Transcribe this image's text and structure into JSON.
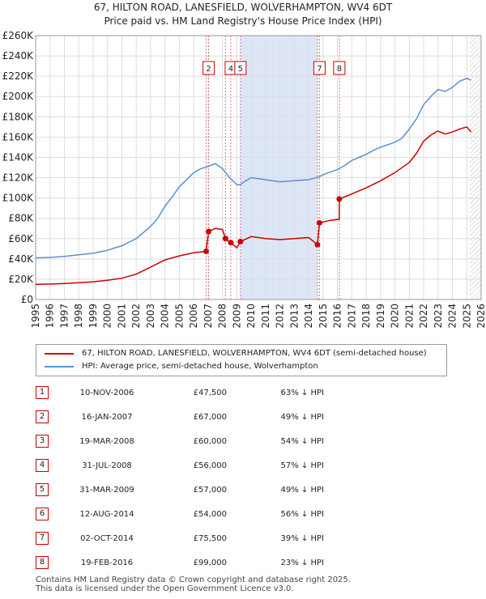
{
  "title": "67, HILTON ROAD, LANESFIELD, WOLVERHAMPTON, WV4 6DT",
  "subtitle": "Price paid vs. HM Land Registry's House Price Index (HPI)",
  "legend": {
    "red": "67, HILTON ROAD, LANESFIELD, WOLVERHAMPTON, WV4 6DT (semi-detached house)",
    "blue": "HPI: Average price, semi-detached house, Wolverhampton"
  },
  "colors": {
    "red": "#cc0000",
    "blue": "#5b8fcf",
    "shade": "#dde6f7",
    "grid": "#dddddd"
  },
  "sales": [
    {
      "n": "1",
      "date": "10-NOV-2006",
      "price": "£47,500",
      "hpi": "63% ↓ HPI"
    },
    {
      "n": "2",
      "date": "16-JAN-2007",
      "price": "£67,000",
      "hpi": "49% ↓ HPI"
    },
    {
      "n": "3",
      "date": "19-MAR-2008",
      "price": "£60,000",
      "hpi": "54% ↓ HPI"
    },
    {
      "n": "4",
      "date": "31-JUL-2008",
      "price": "£56,000",
      "hpi": "57% ↓ HPI"
    },
    {
      "n": "5",
      "date": "31-MAR-2009",
      "price": "£57,000",
      "hpi": "49% ↓ HPI"
    },
    {
      "n": "6",
      "date": "12-AUG-2014",
      "price": "£54,000",
      "hpi": "56% ↓ HPI"
    },
    {
      "n": "7",
      "date": "02-OCT-2014",
      "price": "£75,500",
      "hpi": "39% ↓ HPI"
    },
    {
      "n": "8",
      "date": "19-FEB-2016",
      "price": "£99,000",
      "hpi": "23% ↓ HPI"
    }
  ],
  "footer": {
    "line1": "Contains HM Land Registry data © Crown copyright and database right 2025.",
    "line2": "This data is licensed under the Open Government Licence v3.0."
  },
  "chart_data": {
    "type": "line",
    "xlim": [
      1995,
      2026
    ],
    "ylim": [
      0,
      260000
    ],
    "yticks": [
      0,
      20000,
      40000,
      60000,
      80000,
      100000,
      120000,
      140000,
      160000,
      180000,
      200000,
      220000,
      240000,
      260000
    ],
    "ytick_labels": [
      "£0",
      "£20K",
      "£40K",
      "£60K",
      "£80K",
      "£100K",
      "£120K",
      "£140K",
      "£160K",
      "£180K",
      "£200K",
      "£220K",
      "£240K",
      "£260K"
    ],
    "xticks": [
      "1995",
      "1996",
      "1997",
      "1998",
      "1999",
      "2000",
      "2001",
      "2002",
      "2003",
      "2004",
      "2005",
      "2006",
      "2007",
      "2008",
      "2009",
      "2010",
      "2011",
      "2012",
      "2013",
      "2014",
      "2015",
      "2016",
      "2017",
      "2018",
      "2019",
      "2020",
      "2021",
      "2022",
      "2023",
      "2024",
      "2025",
      "2026"
    ],
    "shaded_range": [
      2009.25,
      2014.6
    ],
    "future_hatch_from": 2025.2,
    "sale_markers": [
      {
        "label": "1",
        "x": 2006.86,
        "y": 47500,
        "show_box": false
      },
      {
        "label": "2",
        "x": 2007.04,
        "y": 67000,
        "show_box": true
      },
      {
        "label": "3",
        "x": 2008.21,
        "y": 60000,
        "show_box": false
      },
      {
        "label": "4",
        "x": 2008.58,
        "y": 56000,
        "show_box": true
      },
      {
        "label": "5",
        "x": 2009.25,
        "y": 57000,
        "show_box": true
      },
      {
        "label": "6",
        "x": 2014.61,
        "y": 54000,
        "show_box": false
      },
      {
        "label": "7",
        "x": 2014.75,
        "y": 75500,
        "show_box": true
      },
      {
        "label": "8",
        "x": 2016.13,
        "y": 99000,
        "show_box": true
      }
    ],
    "series": [
      {
        "name": "HPI: Average price, semi-detached house, Wolverhampton",
        "color": "#5b8fcf",
        "x": [
          1995,
          1996,
          1997,
          1998,
          1999,
          2000,
          2001,
          2002,
          2003,
          2003.5,
          2004,
          2004.5,
          2005,
          2006,
          2006.5,
          2007,
          2007.5,
          2008,
          2008.5,
          2009,
          2009.25,
          2009.5,
          2010,
          2011,
          2012,
          2013,
          2014,
          2014.75,
          2015,
          2016,
          2016.5,
          2017,
          2018,
          2018.5,
          2019,
          2020,
          2020.5,
          2021,
          2021.5,
          2022,
          2022.5,
          2023,
          2023.5,
          2024,
          2024.5,
          2025,
          2025.3
        ],
        "y": [
          41000,
          41500,
          42500,
          44000,
          45500,
          48500,
          53000,
          60000,
          72000,
          80000,
          92000,
          101000,
          111000,
          125000,
          129000,
          131000,
          134000,
          129000,
          120000,
          113000,
          113000,
          116000,
          120000,
          118000,
          116000,
          117000,
          118000,
          121000,
          123000,
          128000,
          132000,
          137000,
          143000,
          147000,
          150000,
          155000,
          159000,
          168000,
          178000,
          192000,
          200000,
          207000,
          205000,
          209000,
          215000,
          218000,
          216000
        ]
      },
      {
        "name": "67, HILTON ROAD, LANESFIELD, WOLVERHAMPTON, WV4 6DT (semi-detached house)",
        "color": "#cc0000",
        "x": [
          1995,
          1996,
          1997,
          1998,
          1999,
          2000,
          2001,
          2002,
          2003,
          2004,
          2005,
          2006,
          2006.86,
          2006.86,
          2007.04,
          2007.04,
          2007.5,
          2008.0,
          2008.21,
          2008.21,
          2008.58,
          2008.58,
          2009.0,
          2009.25,
          2009.25,
          2010,
          2011,
          2012,
          2013,
          2014,
          2014.61,
          2014.61,
          2014.75,
          2014.75,
          2015.5,
          2016.13,
          2016.13,
          2017,
          2018,
          2019,
          2020,
          2021,
          2021.5,
          2022,
          2022.5,
          2023,
          2023.5,
          2024,
          2024.5,
          2025,
          2025.3
        ],
        "y": [
          15000,
          15200,
          15800,
          16500,
          17500,
          19000,
          21000,
          25000,
          32000,
          39000,
          43000,
          46000,
          47500,
          47500,
          67000,
          67000,
          70000,
          69000,
          60000,
          60000,
          56000,
          56000,
          51000,
          57000,
          57000,
          62000,
          60000,
          59000,
          60000,
          61000,
          54000,
          54000,
          75500,
          75500,
          78000,
          79000,
          99000,
          104000,
          110000,
          117000,
          125000,
          135000,
          144000,
          156000,
          162000,
          166000,
          163000,
          165000,
          168000,
          170000,
          165000
        ]
      }
    ]
  }
}
